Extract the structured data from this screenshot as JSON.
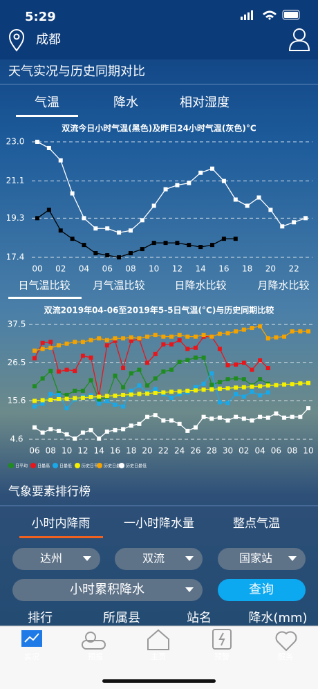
{
  "status": {
    "time": "5:29"
  },
  "header": {
    "city": "成都"
  },
  "section1": {
    "title": "天气实况与历史同期对比",
    "tabs": [
      "气温",
      "降水",
      "相对湿度"
    ],
    "subtabs": [
      "日气温比较",
      "月气温比较",
      "日降水比较",
      "月降水比较"
    ]
  },
  "chart_data": [
    {
      "type": "line",
      "title": "双流今日小时气温(黑色)及昨日24小时气温(灰色)°C",
      "categories": [
        "00",
        null,
        "02",
        null,
        "04",
        null,
        "06",
        null,
        "08",
        null,
        "10",
        null,
        "12",
        null,
        "14",
        null,
        "16",
        null,
        "18",
        null,
        "20",
        null,
        "22",
        null
      ],
      "series": [
        {
          "color": "#ffffff",
          "values": [
            23.0,
            22.7,
            22.1,
            20.5,
            19.3,
            18.8,
            18.8,
            18.6,
            18.7,
            19.2,
            19.9,
            20.7,
            20.9,
            21.0,
            21.5,
            21.7,
            21.1,
            20.2,
            19.9,
            20.3,
            19.7,
            18.9,
            19.1,
            19.3
          ]
        },
        {
          "color": "#000000",
          "values": [
            19.3,
            19.7,
            18.7,
            18.3,
            18.0,
            17.6,
            17.5,
            17.4,
            17.6,
            17.8,
            18.1,
            18.1,
            18.1,
            18.0,
            17.9,
            18.0,
            18.3,
            18.3,
            null,
            null,
            null,
            null,
            null,
            null
          ]
        }
      ],
      "ylim": [
        17.4,
        23.0
      ],
      "yticks": [
        {
          "value": 23.0,
          "label": "23.0"
        },
        21.1,
        19.3,
        17.4
      ],
      "grid": true
    },
    {
      "type": "line",
      "title": "双流2019年04-06至2019年5-5日气温(°C)与历史同期比较",
      "categories": [
        "06",
        null,
        "08",
        null,
        "10",
        null,
        "12",
        null,
        "14",
        null,
        "16",
        null,
        "18",
        null,
        "20",
        null,
        "22",
        null,
        "24",
        null,
        "26",
        null,
        "28",
        null,
        "30",
        null,
        "02",
        null,
        "04",
        null,
        "06",
        null,
        "08",
        null,
        "10"
      ],
      "series": [
        {
          "name": "日平均",
          "color": "#1e8c1e",
          "values": [
            19.8,
            22.0,
            24.2,
            17.8,
            17.3,
            18.5,
            18.5,
            21.5,
            16.0,
            16.5,
            22.8,
            19.5,
            23.5,
            24.5,
            20.0,
            22.0,
            24.0,
            24.5,
            26.8,
            27.3,
            28.0,
            28.0,
            20.2,
            21.0,
            21.8,
            22.0,
            21.8,
            20.0,
            21.8,
            20.5,
            null,
            null,
            null,
            null,
            null
          ]
        },
        {
          "name": "日最高",
          "color": "#e8151b",
          "values": [
            27.8,
            32.2,
            32.5,
            24.0,
            24.5,
            24.2,
            28.5,
            28.0,
            17.0,
            31.5,
            32.8,
            25.0,
            32.8,
            33.3,
            26.5,
            29.0,
            31.8,
            31.8,
            33.0,
            30.5,
            30.8,
            34.0,
            34.0,
            30.5,
            25.8,
            26.0,
            26.5,
            24.5,
            27.2,
            25.0,
            null,
            null,
            null,
            null,
            null
          ]
        },
        {
          "name": "日最低",
          "color": "#1aa8e8",
          "values": [
            14.0,
            14.8,
            17.5,
            17.3,
            13.5,
            16.0,
            16.8,
            17.2,
            14.8,
            15.5,
            14.5,
            14.0,
            18.5,
            20.0,
            18.0,
            19.0,
            17.5,
            16.5,
            17.5,
            18.0,
            19.5,
            20.5,
            23.5,
            15.2,
            15.0,
            17.5,
            16.8,
            18.2,
            17.2,
            18.0,
            null,
            null,
            null,
            null,
            null
          ]
        },
        {
          "name": "历史日平均",
          "color": "#f5f000",
          "values": [
            15.6,
            15.8,
            15.9,
            16.1,
            16.2,
            16.4,
            16.5,
            16.7,
            16.8,
            17.0,
            17.1,
            17.3,
            17.4,
            17.6,
            17.7,
            17.9,
            18.0,
            18.2,
            18.3,
            18.5,
            18.6,
            18.8,
            18.9,
            19.1,
            19.2,
            19.4,
            19.5,
            19.7,
            19.8,
            20.0,
            20.1,
            20.3,
            20.4,
            20.6,
            20.7
          ]
        },
        {
          "name": "历史日最高",
          "color": "#f5a300",
          "values": [
            30.0,
            30.5,
            30.8,
            31.5,
            32.0,
            32.5,
            32.5,
            33.0,
            33.5,
            33.0,
            33.5,
            33.5,
            33.8,
            33.5,
            34.0,
            34.5,
            34.0,
            34.0,
            34.5,
            34.0,
            34.0,
            34.5,
            34.0,
            34.8,
            35.0,
            35.5,
            36.0,
            36.5,
            37.0,
            33.5,
            33.8,
            34.0,
            35.5,
            35.5,
            35.5
          ]
        },
        {
          "name": "历史日最低",
          "color": "#ffffff",
          "values": [
            8.0,
            6.5,
            7.5,
            7.0,
            6.0,
            4.8,
            6.5,
            7.2,
            4.8,
            6.8,
            7.2,
            7.5,
            8.5,
            9.0,
            11.0,
            11.5,
            10.0,
            10.0,
            9.0,
            7.0,
            8.0,
            11.0,
            10.5,
            10.8,
            10.0,
            11.0,
            10.5,
            10.0,
            11.0,
            10.8,
            12.0,
            10.8,
            11.0,
            11.0,
            13.5
          ]
        }
      ],
      "ylim": [
        4.6,
        37.5
      ],
      "yticks": [
        37.5,
        26.5,
        15.6,
        4.6
      ],
      "grid": true,
      "legend": "bottom"
    }
  ],
  "section2": {
    "title": "气象要素排行榜",
    "tabs": [
      "小时内降雨",
      "一小时降水量",
      "整点气温"
    ],
    "dropdowns": [
      "达州",
      "双流",
      "国家站",
      "小时累积降水"
    ],
    "button": "查询",
    "columns": [
      "排行",
      "所属县",
      "站名",
      "降水(mm)"
    ]
  },
  "nav": [
    "实况",
    "预报",
    "主页",
    "预警",
    "服务"
  ]
}
